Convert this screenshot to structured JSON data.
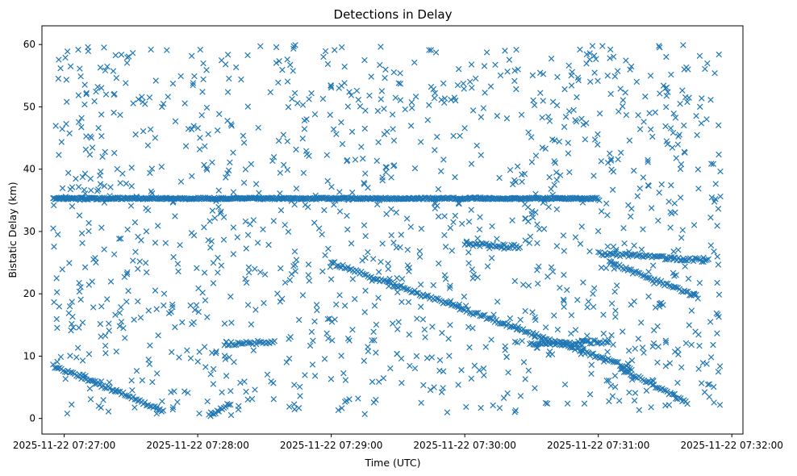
{
  "chart_data": {
    "type": "scatter",
    "title": "Detections in Delay",
    "xlabel": "Time (UTC)",
    "ylabel": "Bistatic Delay (km)",
    "marker": "x",
    "color": "#1f77b4",
    "grid": false,
    "xlim": [
      "2025-11-22 07:26:50",
      "2025-11-22 07:32:05"
    ],
    "ylim": [
      -2.5,
      63
    ],
    "xticks": [
      "2025-11-22 07:27:00",
      "2025-11-22 07:28:00",
      "2025-11-22 07:29:00",
      "2025-11-22 07:30:00",
      "2025-11-22 07:31:00",
      "2025-11-22 07:32:00"
    ],
    "yticks": [
      0,
      10,
      20,
      30,
      40,
      50,
      60
    ],
    "time_range": [
      "2025-11-22 07:26:55",
      "2025-11-22 07:31:55"
    ],
    "tracks": [
      {
        "kind": "constant",
        "delay": 35.3,
        "start": "2025-11-22 07:26:55",
        "end": "2025-11-22 07:31:00"
      },
      {
        "kind": "line",
        "start": [
          "2025-11-22 07:26:55",
          8.5
        ],
        "end": [
          "2025-11-22 07:27:45",
          1.2
        ]
      },
      {
        "kind": "line",
        "start": [
          "2025-11-22 07:28:05",
          0.5
        ],
        "end": [
          "2025-11-22 07:28:15",
          2.5
        ]
      },
      {
        "kind": "line",
        "start": [
          "2025-11-22 07:28:12",
          12.0
        ],
        "end": [
          "2025-11-22 07:28:35",
          12.3
        ]
      },
      {
        "kind": "line",
        "start": [
          "2025-11-22 07:29:00",
          25.0
        ],
        "end": [
          "2025-11-22 07:31:15",
          8.0
        ]
      },
      {
        "kind": "line",
        "start": [
          "2025-11-22 07:30:00",
          28.0
        ],
        "end": [
          "2025-11-22 07:30:25",
          27.5
        ]
      },
      {
        "kind": "line",
        "start": [
          "2025-11-22 07:30:30",
          12.0
        ],
        "end": [
          "2025-11-22 07:31:05",
          12.3
        ]
      },
      {
        "kind": "line",
        "start": [
          "2025-11-22 07:31:00",
          26.5
        ],
        "end": [
          "2025-11-22 07:31:50",
          25.3
        ]
      },
      {
        "kind": "line",
        "start": [
          "2025-11-22 07:31:05",
          25.0
        ],
        "end": [
          "2025-11-22 07:31:45",
          19.5
        ]
      },
      {
        "kind": "line",
        "start": [
          "2025-11-22 07:31:10",
          8.0
        ],
        "end": [
          "2025-11-22 07:31:40",
          2.5
        ]
      }
    ],
    "clutter": {
      "y_range": [
        0.5,
        60
      ],
      "count_approx": 1300
    }
  }
}
